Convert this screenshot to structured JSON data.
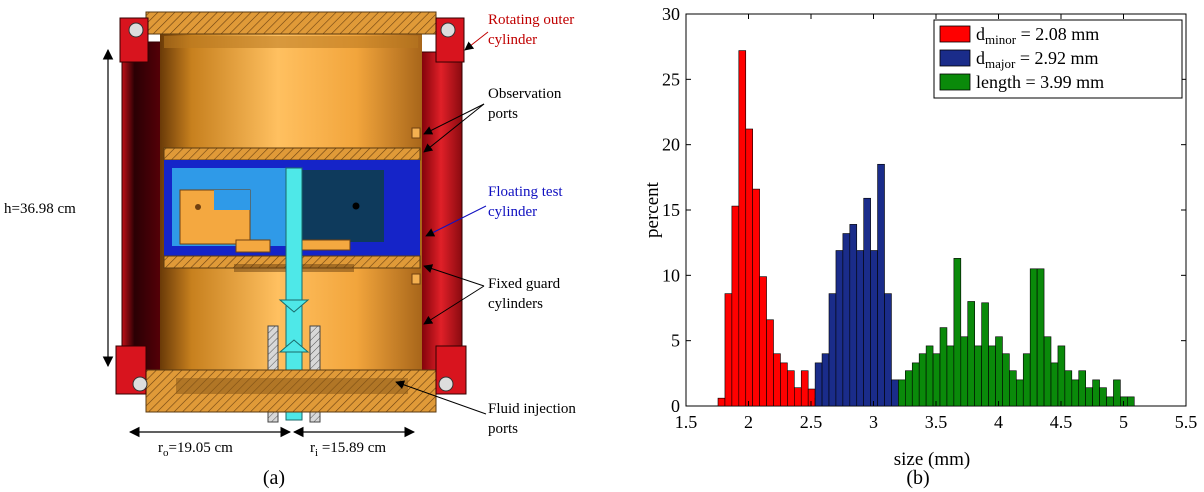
{
  "panel_a": {
    "caption": "(a)",
    "labels": {
      "rotating": [
        "Rotating outer",
        "cylinder"
      ],
      "observation": [
        "Observation",
        "ports"
      ],
      "floating": [
        "Floating test",
        "cylinder"
      ],
      "fixed": [
        "Fixed guard",
        "cylinders"
      ],
      "fluid": [
        "Fluid injection",
        "ports"
      ],
      "height": "h=36.98 cm",
      "ro_sym": "r",
      "ro_sub": "o",
      "ro_val": "=19.05 cm",
      "ri_sym": "r",
      "ri_sub": "i",
      "ri_val": " =15.89 cm"
    },
    "colors": {
      "red_label": "#c00000",
      "blue_label": "#1010c0",
      "gold": "#f0a430",
      "red": "#d8141e",
      "blue": "#1524c8"
    }
  },
  "panel_b": {
    "caption": "(b)",
    "chart_data": {
      "type": "bar",
      "xlabel": "size (mm)",
      "ylabel": "percent",
      "xlim": [
        1.5,
        5.5
      ],
      "ylim": [
        0,
        30
      ],
      "xticks": [
        "1.5",
        "2",
        "2.5",
        "3",
        "3.5",
        "4",
        "4.5",
        "5",
        "5.5"
      ],
      "yticks": [
        "0",
        "5",
        "10",
        "15",
        "20",
        "25",
        "30"
      ],
      "legend_position": "top-right",
      "bin_width": 0.0555,
      "series": [
        {
          "legend_main": "d",
          "legend_sub": "minor",
          "legend_value": " = 2.08 mm",
          "color": "#ff0000",
          "bin_starts": [
            1.756,
            1.8115,
            1.867,
            1.9225,
            1.978,
            2.0335,
            2.089,
            2.1445,
            2.2,
            2.2555,
            2.311,
            2.3665,
            2.422,
            2.4775,
            2.533
          ],
          "values": [
            0.6,
            8.6,
            15.3,
            27.2,
            21.2,
            16.6,
            9.9,
            6.6,
            4.0,
            3.3,
            2.7,
            1.4,
            2.7,
            1.3,
            0.6
          ]
        },
        {
          "legend_main": "d",
          "legend_sub": "major",
          "legend_value": " = 2.92 mm",
          "color": "#1a2c8a",
          "bin_starts": [
            2.533,
            2.5885,
            2.644,
            2.6995,
            2.755,
            2.8105,
            2.866,
            2.9215,
            2.977,
            3.0325,
            3.088,
            3.1435
          ],
          "values": [
            3.3,
            4.0,
            8.6,
            11.9,
            13.2,
            13.9,
            11.9,
            15.9,
            11.9,
            18.5,
            8.6,
            2.0
          ]
        },
        {
          "legend_main": "length",
          "legend_sub": "",
          "legend_value": " = 3.99 mm",
          "color": "#0a8a0a",
          "bin_starts": [
            3.199,
            3.2545,
            3.31,
            3.3655,
            3.421,
            3.4765,
            3.532,
            3.5875,
            3.643,
            3.6985,
            3.754,
            3.8095,
            3.865,
            3.9205,
            3.976,
            4.0315,
            4.087,
            4.1425,
            4.198,
            4.2535,
            4.309,
            4.3645,
            4.42,
            4.4755,
            4.531,
            4.5865,
            4.642,
            4.6975,
            4.753,
            4.8085,
            4.864,
            4.9195,
            4.975,
            5.0305
          ],
          "values": [
            2.0,
            2.7,
            3.3,
            4.0,
            4.6,
            4.0,
            6.0,
            4.6,
            11.3,
            5.3,
            8.0,
            4.6,
            7.9,
            4.6,
            5.3,
            4.0,
            2.7,
            2.0,
            4.0,
            10.5,
            10.5,
            5.3,
            3.3,
            4.6,
            2.7,
            2.0,
            2.7,
            1.4,
            2.0,
            1.4,
            0.7,
            2.0,
            0.7,
            0.7
          ]
        }
      ]
    }
  }
}
